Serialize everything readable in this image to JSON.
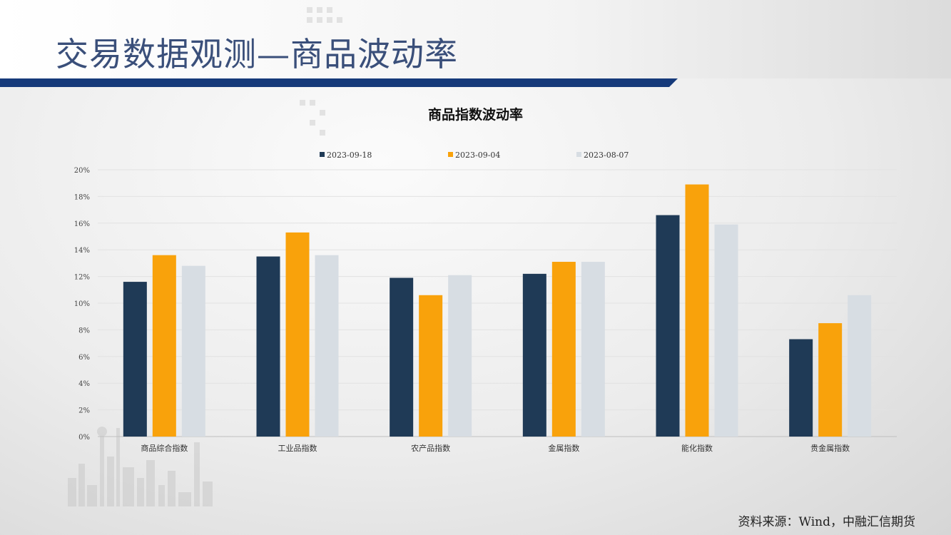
{
  "slide": {
    "title": "交易数据观测—商品波动率",
    "source": "资料来源：Wind，中融汇信期货"
  },
  "colors": {
    "series_1": "#1f3a56",
    "series_2": "#f9a20b",
    "series_3": "#d7dde3",
    "title_text": "#3a4f7a",
    "rule": "#163a7a"
  },
  "chart_data": {
    "type": "bar",
    "title": "商品指数波动率",
    "categories": [
      "商品综合指数",
      "工业品指数",
      "农产品指数",
      "金属指数",
      "能化指数",
      "贵金属指数"
    ],
    "series": [
      {
        "name": "2023-09-18",
        "values": [
          11.6,
          13.5,
          11.9,
          12.2,
          16.6,
          7.3
        ]
      },
      {
        "name": "2023-09-04",
        "values": [
          13.6,
          15.3,
          10.6,
          13.1,
          18.9,
          8.5
        ]
      },
      {
        "name": "2023-08-07",
        "values": [
          12.8,
          13.6,
          12.1,
          13.1,
          15.9,
          10.6
        ]
      }
    ],
    "ylim": [
      0,
      20
    ],
    "yticks": [
      "0%",
      "2%",
      "4%",
      "6%",
      "8%",
      "10%",
      "12%",
      "14%",
      "16%",
      "18%",
      "20%"
    ],
    "legend_position": "top",
    "grid": true
  }
}
